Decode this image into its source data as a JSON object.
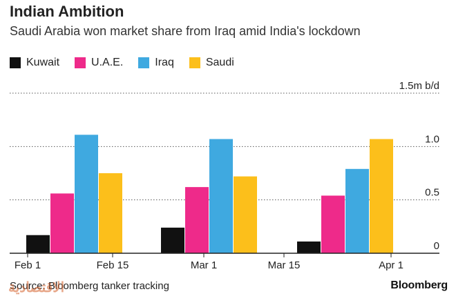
{
  "header": {
    "title": "Indian Ambition",
    "subtitle": "Saudi Arabia won market share from Iraq amid India's lockdown"
  },
  "footer": {
    "source": "Source: Bloomberg tanker tracking",
    "brand": "Bloomberg",
    "watermark": "الاقتصادية"
  },
  "chart_data": {
    "type": "bar",
    "title": "Indian Ambition",
    "subtitle": "Saudi Arabia won market share from Iraq amid India's lockdown",
    "unit_label": "1.5m b/d",
    "ylim": [
      0,
      1.5
    ],
    "yticks": [
      0,
      0.5,
      1.0,
      1.5
    ],
    "ytick_labels": [
      "0",
      "0.5",
      "1.0",
      "1.5m b/d"
    ],
    "grid": true,
    "legend_position": "top-left",
    "x_ticks": [
      {
        "label": "Feb 1",
        "slot": 0
      },
      {
        "label": "Feb 15",
        "slot": 1
      },
      {
        "label": "Mar 1",
        "slot": 2
      },
      {
        "label": "Mar 15",
        "slot": 3
      },
      {
        "label": "Apr 1",
        "slot": 4
      }
    ],
    "categories": [
      "Feb",
      "Mar",
      "Apr"
    ],
    "series": [
      {
        "name": "Kuwait",
        "color": "#111111",
        "values": [
          0.17,
          0.24,
          0.11
        ]
      },
      {
        "name": "U.A.E.",
        "color": "#ee2a8a",
        "values": [
          0.56,
          0.62,
          0.54
        ]
      },
      {
        "name": "Iraq",
        "color": "#3fa9e0",
        "values": [
          1.11,
          1.07,
          0.79
        ]
      },
      {
        "name": "Saudi",
        "color": "#fcbf1b",
        "values": [
          0.75,
          0.72,
          1.07
        ]
      }
    ]
  }
}
